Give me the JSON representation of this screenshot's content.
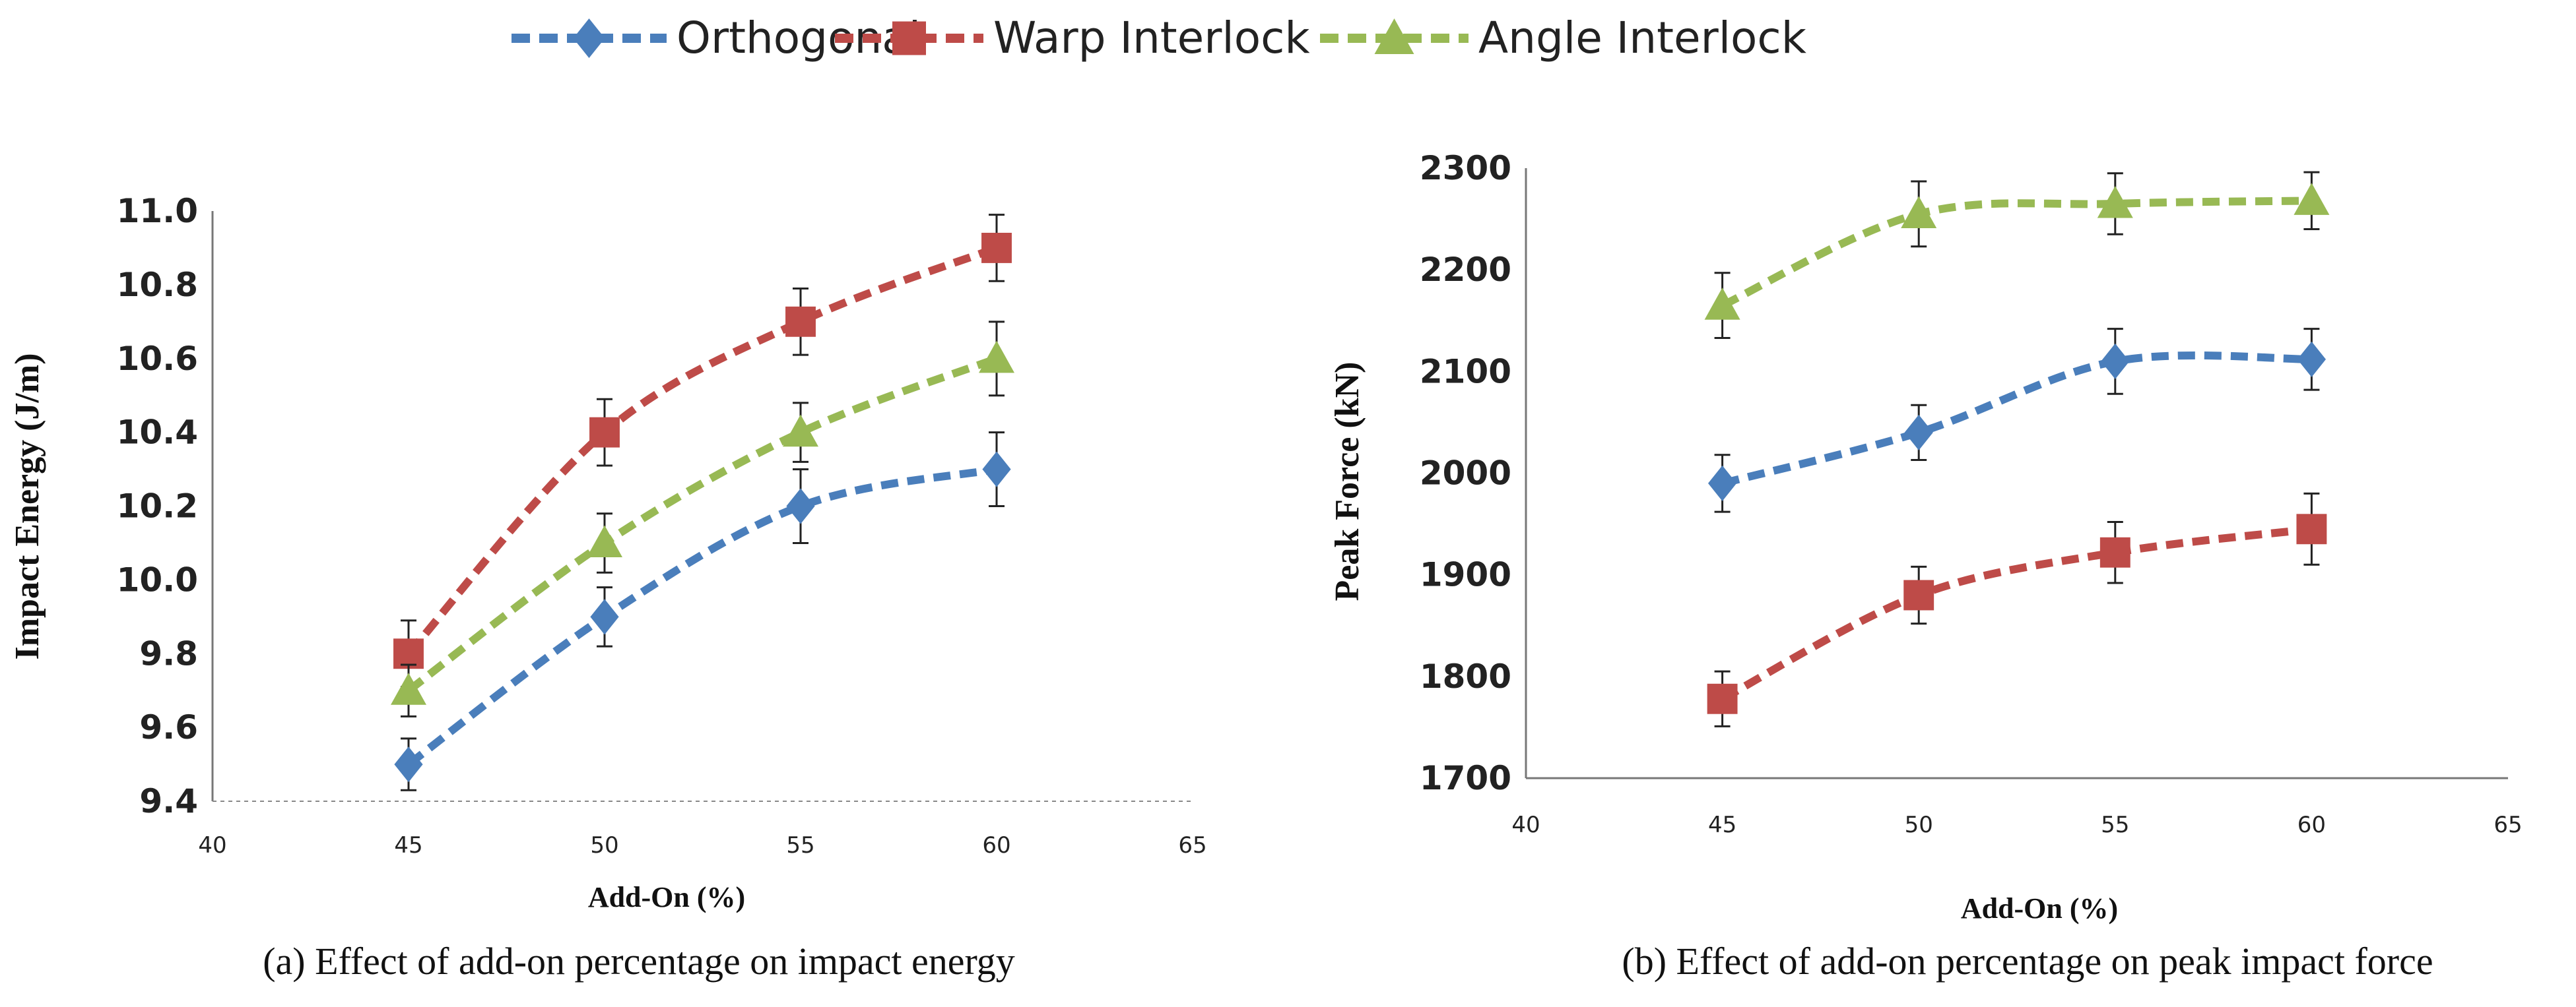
{
  "legend": {
    "items": [
      {
        "name": "Orthogonal",
        "color": "#4a7ebb",
        "marker": "diamond-icon"
      },
      {
        "name": "Warp Interlock",
        "color": "#be4b48",
        "marker": "square-icon"
      },
      {
        "name": "Angle Interlock",
        "color": "#98b954",
        "marker": "triangle-icon"
      }
    ]
  },
  "chart_data": [
    {
      "type": "line",
      "title": "",
      "caption": "(a) Effect of add-on percentage on impact energy",
      "xlabel": "Add-On (%)",
      "ylabel": "Impact Energy (J/m)",
      "xlim": [
        40,
        65
      ],
      "ylim": [
        9.4,
        11.0
      ],
      "x_ticks": [
        40,
        45,
        50,
        55,
        60,
        65
      ],
      "y_ticks": [
        9.4,
        9.6,
        9.8,
        10.0,
        10.2,
        10.4,
        10.6,
        10.8,
        11.0
      ],
      "y_tick_labels": [
        "9.4",
        "9.6",
        "9.8",
        "10.0",
        "10.2",
        "10.4",
        "10.6",
        "10.8",
        "11.0"
      ],
      "x": [
        45,
        50,
        55,
        60
      ],
      "series": [
        {
          "name": "Orthogonal",
          "values": [
            9.5,
            9.9,
            10.2,
            10.3
          ],
          "error": [
            0.07,
            0.08,
            0.1,
            0.1
          ]
        },
        {
          "name": "Warp Interlock",
          "values": [
            9.8,
            10.4,
            10.7,
            10.9
          ],
          "error": [
            0.09,
            0.09,
            0.09,
            0.09
          ]
        },
        {
          "name": "Angle Interlock",
          "values": [
            9.7,
            10.1,
            10.4,
            10.6
          ],
          "error": [
            0.07,
            0.08,
            0.08,
            0.1
          ]
        }
      ],
      "grid": false
    },
    {
      "type": "line",
      "title": "",
      "caption": "(b) Effect of add-on percentage on peak impact force",
      "xlabel": "Add-On (%)",
      "ylabel": "Peak Force (kN)",
      "xlim": [
        40,
        65
      ],
      "ylim": [
        1700,
        2300
      ],
      "x_ticks": [
        40,
        45,
        50,
        55,
        60,
        65
      ],
      "y_ticks": [
        1700,
        1800,
        1900,
        2000,
        2100,
        2200,
        2300
      ],
      "y_tick_labels": [
        "1700",
        "1800",
        "1900",
        "2000",
        "2100",
        "2200",
        "2300"
      ],
      "x": [
        45,
        50,
        55,
        60
      ],
      "series": [
        {
          "name": "Orthogonal",
          "values": [
            1990,
            2040,
            2110,
            2112
          ],
          "error": [
            28,
            27,
            32,
            30
          ]
        },
        {
          "name": "Warp Interlock",
          "values": [
            1778,
            1880,
            1922,
            1945
          ],
          "error": [
            27,
            28,
            30,
            35
          ]
        },
        {
          "name": "Angle Interlock",
          "values": [
            2165,
            2255,
            2265,
            2268
          ],
          "error": [
            32,
            32,
            30,
            28
          ]
        }
      ],
      "grid": false
    }
  ]
}
